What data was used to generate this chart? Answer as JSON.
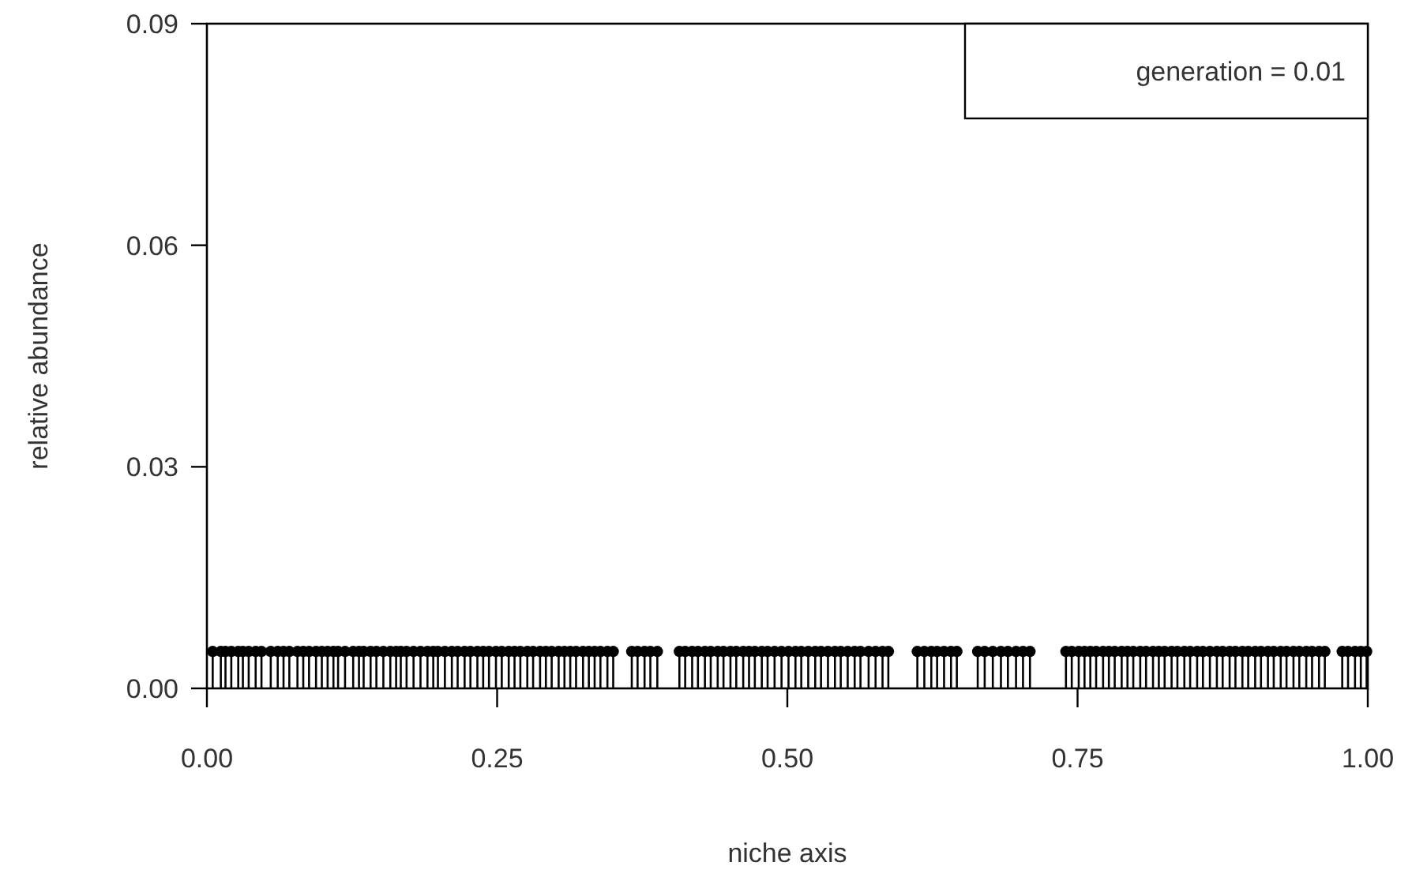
{
  "chart_data": {
    "type": "lollipop",
    "xlabel": "niche axis",
    "ylabel": "relative abundance",
    "annotations": [
      "generation = 0.01"
    ],
    "xlim": [
      0,
      1
    ],
    "ylim": [
      0,
      0.09
    ],
    "xticks": [
      {
        "value": 0,
        "label": "0.00"
      },
      {
        "value": 0.25,
        "label": "0.25"
      },
      {
        "value": 0.5,
        "label": "0.50"
      },
      {
        "value": 0.75,
        "label": "0.75"
      },
      {
        "value": 1,
        "label": "1.00"
      }
    ],
    "yticks": [
      {
        "value": 0,
        "label": "0.00"
      },
      {
        "value": 0.03,
        "label": "0.03"
      },
      {
        "value": 0.06,
        "label": "0.06"
      },
      {
        "value": 0.09,
        "label": "0.09"
      }
    ],
    "marker": "circle",
    "grid": false,
    "series": [
      {
        "color": "#000000",
        "x": [
          0.005,
          0.012,
          0.016,
          0.021,
          0.027,
          0.031,
          0.036,
          0.042,
          0.047,
          0.055,
          0.061,
          0.066,
          0.071,
          0.078,
          0.083,
          0.088,
          0.094,
          0.099,
          0.104,
          0.109,
          0.113,
          0.119,
          0.126,
          0.131,
          0.135,
          0.141,
          0.146,
          0.152,
          0.158,
          0.163,
          0.167,
          0.172,
          0.178,
          0.184,
          0.19,
          0.195,
          0.199,
          0.205,
          0.211,
          0.216,
          0.222,
          0.227,
          0.233,
          0.238,
          0.243,
          0.249,
          0.254,
          0.26,
          0.265,
          0.27,
          0.276,
          0.281,
          0.287,
          0.292,
          0.297,
          0.303,
          0.308,
          0.313,
          0.318,
          0.324,
          0.329,
          0.334,
          0.339,
          0.345,
          0.35,
          0.366,
          0.371,
          0.377,
          0.382,
          0.388,
          0.407,
          0.412,
          0.418,
          0.423,
          0.429,
          0.434,
          0.44,
          0.445,
          0.451,
          0.456,
          0.462,
          0.467,
          0.472,
          0.478,
          0.483,
          0.489,
          0.495,
          0.501,
          0.507,
          0.512,
          0.518,
          0.524,
          0.529,
          0.535,
          0.541,
          0.546,
          0.552,
          0.558,
          0.563,
          0.57,
          0.576,
          0.582,
          0.587,
          0.612,
          0.618,
          0.624,
          0.629,
          0.635,
          0.641,
          0.646,
          0.664,
          0.67,
          0.677,
          0.684,
          0.69,
          0.697,
          0.703,
          0.709,
          0.74,
          0.745,
          0.751,
          0.756,
          0.761,
          0.766,
          0.772,
          0.777,
          0.782,
          0.788,
          0.793,
          0.798,
          0.804,
          0.809,
          0.815,
          0.82,
          0.825,
          0.831,
          0.836,
          0.842,
          0.847,
          0.853,
          0.858,
          0.864,
          0.87,
          0.875,
          0.881,
          0.886,
          0.892,
          0.897,
          0.903,
          0.908,
          0.914,
          0.919,
          0.925,
          0.93,
          0.936,
          0.941,
          0.947,
          0.952,
          0.958,
          0.963,
          0.978,
          0.983,
          0.989,
          0.994,
          0.999
        ],
        "values": [
          0.005,
          0.005,
          0.005,
          0.005,
          0.005,
          0.005,
          0.005,
          0.005,
          0.005,
          0.005,
          0.005,
          0.005,
          0.005,
          0.005,
          0.005,
          0.005,
          0.005,
          0.005,
          0.005,
          0.005,
          0.005,
          0.005,
          0.005,
          0.005,
          0.005,
          0.005,
          0.005,
          0.005,
          0.005,
          0.005,
          0.005,
          0.005,
          0.005,
          0.005,
          0.005,
          0.005,
          0.005,
          0.005,
          0.005,
          0.005,
          0.005,
          0.005,
          0.005,
          0.005,
          0.005,
          0.005,
          0.005,
          0.005,
          0.005,
          0.005,
          0.005,
          0.005,
          0.005,
          0.005,
          0.005,
          0.005,
          0.005,
          0.005,
          0.005,
          0.005,
          0.005,
          0.005,
          0.005,
          0.005,
          0.005,
          0.005,
          0.005,
          0.005,
          0.005,
          0.005,
          0.005,
          0.005,
          0.005,
          0.005,
          0.005,
          0.005,
          0.005,
          0.005,
          0.005,
          0.005,
          0.005,
          0.005,
          0.005,
          0.005,
          0.005,
          0.005,
          0.005,
          0.005,
          0.005,
          0.005,
          0.005,
          0.005,
          0.005,
          0.005,
          0.005,
          0.005,
          0.005,
          0.005,
          0.005,
          0.005,
          0.005,
          0.005,
          0.005,
          0.005,
          0.005,
          0.005,
          0.005,
          0.005,
          0.005,
          0.005,
          0.005,
          0.005,
          0.005,
          0.005,
          0.005,
          0.005,
          0.005,
          0.005,
          0.005,
          0.005,
          0.005,
          0.005,
          0.005,
          0.005,
          0.005,
          0.005,
          0.005,
          0.005,
          0.005,
          0.005,
          0.005,
          0.005,
          0.005,
          0.005,
          0.005,
          0.005,
          0.005,
          0.005,
          0.005,
          0.005,
          0.005,
          0.005,
          0.005,
          0.005,
          0.005,
          0.005,
          0.005,
          0.005,
          0.005,
          0.005,
          0.005,
          0.005,
          0.005,
          0.005,
          0.005,
          0.005,
          0.005,
          0.005,
          0.005,
          0.005,
          0.005,
          0.005,
          0.005,
          0.005,
          0.005
        ]
      }
    ]
  }
}
